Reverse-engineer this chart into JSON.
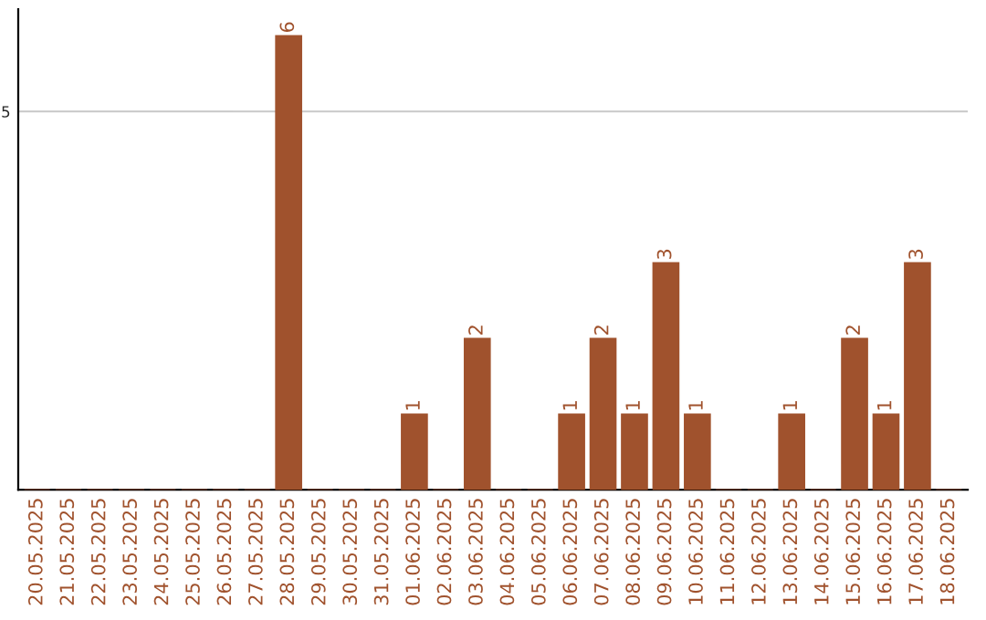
{
  "chart_data": {
    "type": "bar",
    "categories": [
      "20.05.2025",
      "21.05.2025",
      "22.05.2025",
      "23.05.2025",
      "24.05.2025",
      "25.05.2025",
      "26.05.2025",
      "27.05.2025",
      "28.05.2025",
      "29.05.2025",
      "30.05.2025",
      "31.05.2025",
      "01.06.2025",
      "02.06.2025",
      "03.06.2025",
      "04.06.2025",
      "05.06.2025",
      "06.06.2025",
      "07.06.2025",
      "08.06.2025",
      "09.06.2025",
      "10.06.2025",
      "11.06.2025",
      "12.06.2025",
      "13.06.2025",
      "14.06.2025",
      "15.06.2025",
      "16.06.2025",
      "17.06.2025",
      "18.06.2025"
    ],
    "values": [
      0,
      0,
      0,
      0,
      0,
      0,
      0,
      0,
      6,
      0,
      0,
      0,
      1,
      0,
      2,
      0,
      0,
      1,
      2,
      1,
      3,
      1,
      0,
      0,
      1,
      0,
      2,
      1,
      3,
      0
    ],
    "value_labels": [
      null,
      null,
      null,
      null,
      null,
      null,
      null,
      null,
      "6",
      null,
      null,
      null,
      "1",
      null,
      "2",
      null,
      null,
      "1",
      "2",
      "1",
      "3",
      "1",
      null,
      null,
      "1",
      null,
      "2",
      "1",
      "3",
      null
    ],
    "color": "#a0522d",
    "ylim": [
      0,
      6.35
    ],
    "yticks": [
      5
    ],
    "grid": "y"
  }
}
